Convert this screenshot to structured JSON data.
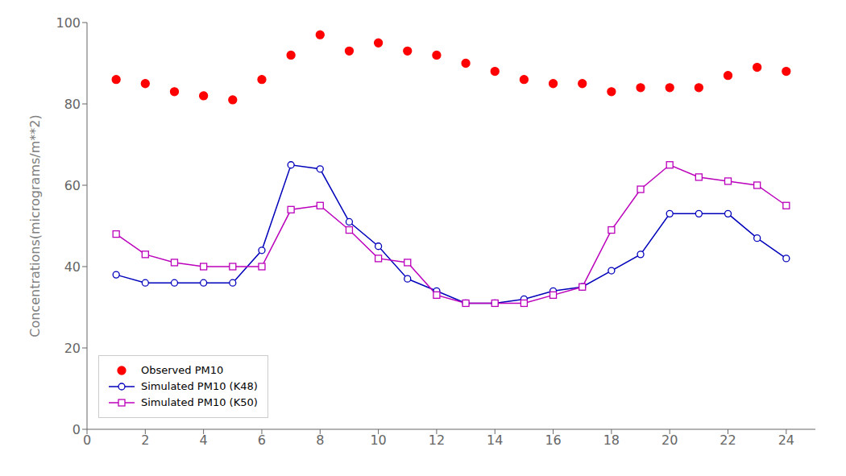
{
  "chart_data": {
    "type": "line",
    "x": [
      1,
      2,
      3,
      4,
      5,
      6,
      7,
      8,
      9,
      10,
      11,
      12,
      13,
      14,
      15,
      16,
      17,
      18,
      19,
      20,
      21,
      22,
      23,
      24
    ],
    "series": [
      {
        "name": "Observed PM10",
        "color": "#FF0000",
        "values": [
          86,
          85,
          83,
          82,
          81,
          86,
          92,
          97,
          93,
          95,
          93,
          92,
          90,
          88,
          86,
          85,
          85,
          83,
          84,
          84,
          84,
          87,
          89,
          88
        ],
        "marker": "circle",
        "line_style": "none"
      },
      {
        "name": "Simulated PM10 (K48)",
        "color": "#0000BB",
        "values": [
          38,
          36,
          36,
          36,
          36,
          44,
          65,
          64,
          51,
          45,
          37,
          34,
          31,
          31,
          32,
          34,
          35,
          39,
          43,
          53,
          53,
          53,
          47,
          42
        ],
        "marker": "circle",
        "line_style": "solid"
      },
      {
        "name": "Simulated PM10 (K50)",
        "color": "#BB00BB",
        "values": [
          48,
          43,
          41,
          40,
          40,
          40,
          54,
          55,
          49,
          42,
          41,
          33,
          31,
          31,
          31,
          33,
          35,
          49,
          59,
          65,
          62,
          61,
          60,
          55
        ],
        "marker": "square",
        "line_style": "solid"
      }
    ],
    "ylabel": "Concentrations(micrograms/m**2)",
    "xlim": [
      0,
      25
    ],
    "ylim": [
      0,
      100
    ],
    "xticks": [
      0,
      2,
      4,
      6,
      8,
      10,
      12,
      14,
      16,
      18,
      20,
      22,
      24
    ],
    "yticks": [
      0,
      20,
      40,
      60,
      80,
      100
    ],
    "legend": "lower left",
    "grid": false
  }
}
